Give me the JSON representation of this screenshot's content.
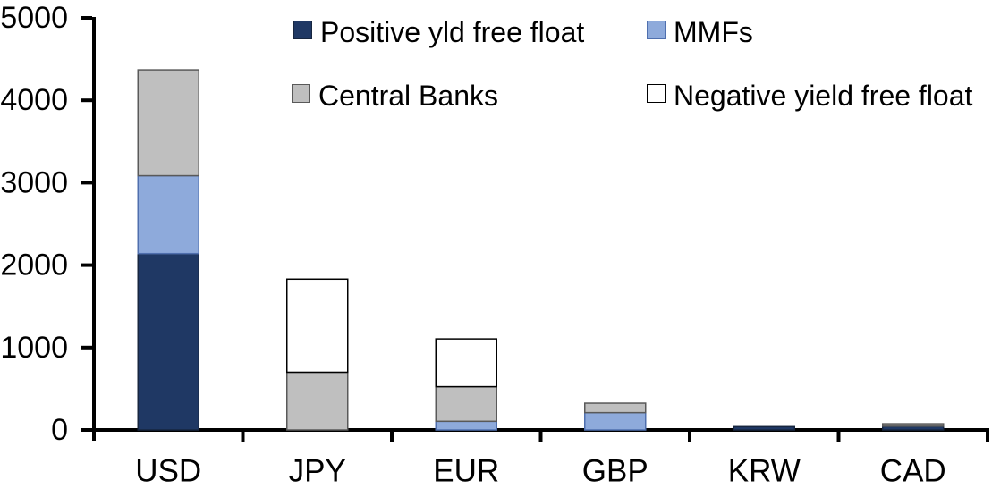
{
  "chart_data": {
    "type": "bar",
    "subtype": "stacked-vertical",
    "title": "",
    "xlabel": "",
    "ylabel": "",
    "categories": [
      "USD",
      "JPY",
      "EUR",
      "GBP",
      "KRW",
      "CAD"
    ],
    "series": [
      {
        "name": "Positive yld free float",
        "color": "#1F3864",
        "border": "#17263F",
        "values": [
          2140,
          0,
          0,
          0,
          40,
          45
        ]
      },
      {
        "name": "MMFs",
        "color": "#8EAADB",
        "border": "#4F6FAE",
        "values": [
          945,
          0,
          105,
          210,
          0,
          0
        ]
      },
      {
        "name": "Central Banks",
        "color": "#BFBFBF",
        "border": "#595959",
        "values": [
          1285,
          700,
          420,
          115,
          0,
          30
        ]
      },
      {
        "name": "Negative yield free float",
        "color": "#FFFFFF",
        "border": "#000000",
        "values": [
          0,
          1130,
          580,
          0,
          0,
          0
        ]
      }
    ],
    "totals": [
      4370,
      1830,
      1105,
      325,
      40,
      75
    ],
    "ylim": [
      0,
      5000
    ],
    "y_ticks": [
      0,
      1000,
      2000,
      3000,
      4000,
      5000
    ],
    "grid": "off",
    "legend_position": "top, two columns, two rows",
    "axis_color": "#000000",
    "background_color": "#FFFFFF"
  }
}
